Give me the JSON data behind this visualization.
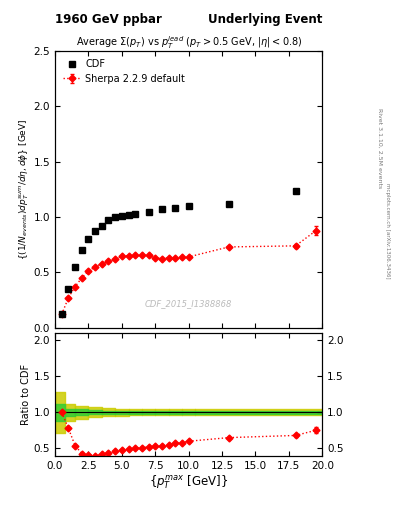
{
  "title_left": "1960 GeV ppbar",
  "title_right": "Underlying Event",
  "plot_title": "Average $\\Sigma(p_T)$ vs $p_T^{lead}$ ($p_T > 0.5$ GeV, $|\\eta| < 0.8$)",
  "xlabel": "$\\{p_T^{max}$ [GeV]$\\}$",
  "ylabel_main": "$\\{(1/N_{events}) dp_T^{sum}/d\\eta, d\\phi\\}$ [GeV]",
  "ylabel_ratio": "Ratio to CDF",
  "watermark": "CDF_2015_I1388868",
  "right_label_top": "Rivet 3.1.10, 2.5M events",
  "right_label_bot": "mcplots.cern.ch [arXiv:1306.3436]",
  "cdf_x": [
    0.5,
    1.0,
    1.5,
    2.0,
    2.5,
    3.0,
    3.5,
    4.0,
    4.5,
    5.0,
    5.5,
    6.0,
    7.0,
    8.0,
    9.0,
    10.0,
    13.0,
    18.0
  ],
  "cdf_y": [
    0.12,
    0.35,
    0.55,
    0.7,
    0.8,
    0.87,
    0.92,
    0.97,
    1.0,
    1.01,
    1.02,
    1.03,
    1.05,
    1.07,
    1.08,
    1.1,
    1.12,
    1.24
  ],
  "sherpa_x": [
    0.5,
    1.0,
    1.5,
    2.0,
    2.5,
    3.0,
    3.5,
    4.0,
    4.5,
    5.0,
    5.5,
    6.0,
    6.5,
    7.0,
    7.5,
    8.0,
    8.5,
    9.0,
    9.5,
    10.0,
    13.0,
    18.0,
    19.5
  ],
  "sherpa_y": [
    0.12,
    0.27,
    0.37,
    0.45,
    0.51,
    0.55,
    0.58,
    0.6,
    0.62,
    0.645,
    0.65,
    0.655,
    0.655,
    0.655,
    0.63,
    0.625,
    0.63,
    0.63,
    0.635,
    0.64,
    0.73,
    0.74,
    0.875
  ],
  "sherpa_yerr": [
    0.005,
    0.005,
    0.005,
    0.005,
    0.005,
    0.004,
    0.004,
    0.004,
    0.004,
    0.004,
    0.004,
    0.004,
    0.004,
    0.004,
    0.004,
    0.004,
    0.004,
    0.004,
    0.004,
    0.004,
    0.008,
    0.015,
    0.04
  ],
  "ratio_x": [
    0.5,
    1.0,
    1.5,
    2.0,
    2.5,
    3.0,
    3.5,
    4.0,
    4.5,
    5.0,
    5.5,
    6.0,
    6.5,
    7.0,
    7.5,
    8.0,
    8.5,
    9.0,
    9.5,
    10.0,
    13.0,
    18.0,
    19.5
  ],
  "ratio_y": [
    1.0,
    0.78,
    0.54,
    0.43,
    0.41,
    0.4,
    0.42,
    0.44,
    0.46,
    0.48,
    0.49,
    0.5,
    0.51,
    0.52,
    0.53,
    0.54,
    0.55,
    0.57,
    0.58,
    0.6,
    0.65,
    0.68,
    0.75
  ],
  "ratio_yerr": [
    0.01,
    0.01,
    0.01,
    0.01,
    0.01,
    0.008,
    0.008,
    0.008,
    0.008,
    0.008,
    0.008,
    0.008,
    0.008,
    0.008,
    0.008,
    0.008,
    0.008,
    0.008,
    0.008,
    0.008,
    0.015,
    0.02,
    0.04
  ],
  "band_edges": [
    0.0,
    0.75,
    1.5,
    2.5,
    3.5,
    4.5,
    5.5,
    6.5,
    7.5,
    8.5,
    9.5,
    10.5,
    20.0
  ],
  "band_green_lo": [
    0.88,
    0.95,
    0.96,
    0.97,
    0.975,
    0.98,
    0.98,
    0.98,
    0.98,
    0.98,
    0.98,
    0.98
  ],
  "band_green_hi": [
    1.12,
    1.05,
    1.04,
    1.03,
    1.025,
    1.02,
    1.02,
    1.02,
    1.02,
    1.02,
    1.02,
    1.02
  ],
  "band_yellow_lo": [
    0.72,
    0.88,
    0.91,
    0.93,
    0.945,
    0.955,
    0.96,
    0.965,
    0.965,
    0.965,
    0.965,
    0.965
  ],
  "band_yellow_hi": [
    1.28,
    1.12,
    1.09,
    1.07,
    1.055,
    1.045,
    1.04,
    1.04,
    1.04,
    1.04,
    1.04,
    1.04
  ],
  "xlim": [
    0,
    20
  ],
  "ylim_main": [
    0.0,
    2.5
  ],
  "ylim_ratio": [
    0.4,
    2.1
  ],
  "yticks_main": [
    0.0,
    0.5,
    1.0,
    1.5,
    2.0,
    2.5
  ],
  "yticks_ratio_left": [
    0.5,
    1.0,
    1.5,
    2.0
  ],
  "yticks_ratio_right": [
    0.5,
    1.0,
    1.5,
    2.0
  ],
  "color_cdf": "black",
  "color_sherpa": "red",
  "color_green": "#33cc33",
  "color_yellow": "#cccc00",
  "bg_color": "white"
}
